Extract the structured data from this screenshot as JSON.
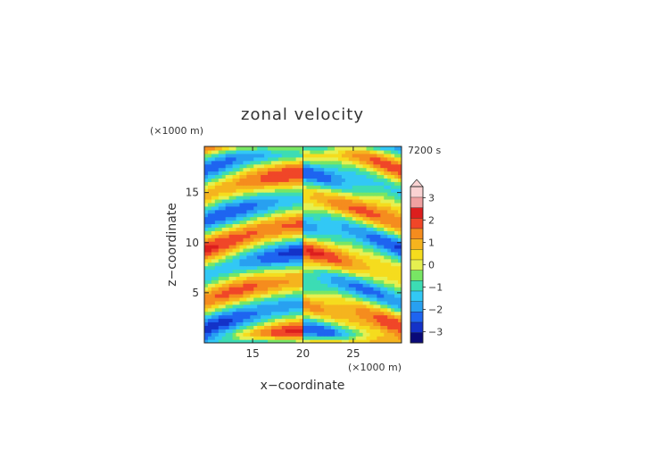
{
  "chart_data": {
    "type": "heatmap",
    "title": "zonal velocity",
    "xlabel": "x−coordinate",
    "ylabel": "z−coordinate",
    "x_units": "(×1000 m)",
    "y_units": "(×1000 m)",
    "time_label": "7200 s",
    "xlim": [
      10.2,
      29.8
    ],
    "ylim": [
      0,
      19.6
    ],
    "x_ticks": [
      15,
      20,
      25
    ],
    "x_tick_labels": [
      "15",
      "20",
      "25"
    ],
    "y_ticks": [
      5,
      10,
      15
    ],
    "y_tick_labels": [
      "5",
      "10",
      "15"
    ],
    "grid": false,
    "colorbar": {
      "levels": [
        -3.5,
        -3,
        -2.5,
        -2,
        -1.5,
        -1,
        -0.5,
        0,
        0.5,
        1,
        1.5,
        2,
        2.5,
        3,
        3.5
      ],
      "colors": [
        "#0a0a78",
        "#1432c8",
        "#1e64f0",
        "#28a0f0",
        "#32c8f5",
        "#3cdcb4",
        "#78e664",
        "#e6f050",
        "#f5dc1e",
        "#f5b41e",
        "#f58c1e",
        "#f04628",
        "#dc1e1e",
        "#f0a0a0",
        "#fad2d2"
      ],
      "tick_values": [
        -3,
        -2,
        -1,
        0,
        1,
        2,
        3
      ],
      "tick_labels": [
        "−3",
        "−2",
        "−1",
        "0",
        "1",
        "2",
        "3"
      ],
      "extend": "max",
      "placement": "right"
    },
    "field_description": "Zonal velocity on an x–z grid showing horizontal wave bands, mirror-symmetric about x = 20; strong negative values at top centre-right and bottom-left, strong positive values near the top-left and bottom-right edges."
  }
}
